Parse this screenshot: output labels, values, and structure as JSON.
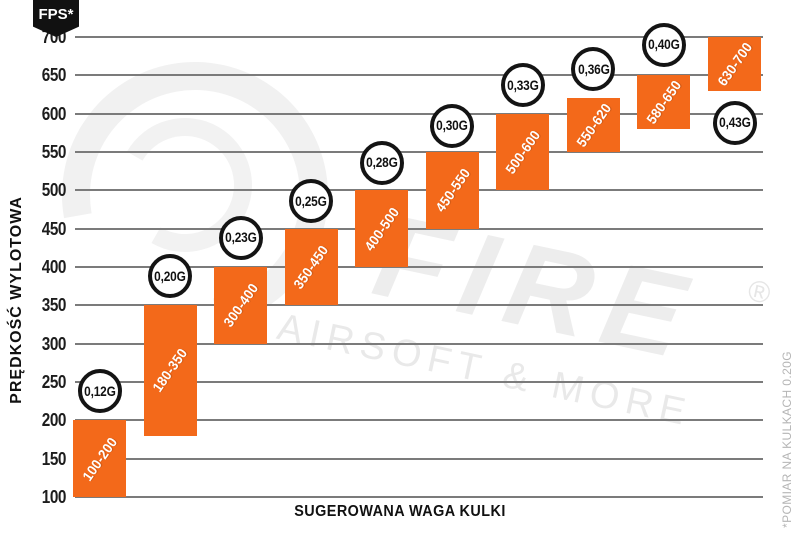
{
  "chart_data": {
    "type": "bar",
    "variant": "floating-range-columns",
    "title": "",
    "xlabel": "SUGEROWANA WAGA KULKI",
    "ylabel": "PRĘDKOŚĆ WYLOTOWA",
    "y_unit_badge": "FPS*",
    "ylim": [
      100,
      700
    ],
    "yticks": [
      700,
      650,
      600,
      550,
      500,
      450,
      400,
      350,
      300,
      250,
      200,
      150,
      100
    ],
    "grid": true,
    "legend": false,
    "footnote": "*POMIAR NA KULKACH 0.20G",
    "items": [
      {
        "weight": "0,12G",
        "range_label": "100-200",
        "fps_min": 100,
        "fps_max": 200,
        "badge_fps": 238
      },
      {
        "weight": "0,20G",
        "range_label": "180-350",
        "fps_min": 180,
        "fps_max": 350,
        "badge_fps": 388
      },
      {
        "weight": "0,23G",
        "range_label": "300-400",
        "fps_min": 300,
        "fps_max": 400,
        "badge_fps": 438
      },
      {
        "weight": "0,25G",
        "range_label": "350-450",
        "fps_min": 350,
        "fps_max": 450,
        "badge_fps": 486
      },
      {
        "weight": "0,28G",
        "range_label": "400-500",
        "fps_min": 400,
        "fps_max": 500,
        "badge_fps": 536
      },
      {
        "weight": "0,30G",
        "range_label": "450-550",
        "fps_min": 450,
        "fps_max": 550,
        "badge_fps": 584
      },
      {
        "weight": "0,33G",
        "range_label": "500-600",
        "fps_min": 500,
        "fps_max": 600,
        "badge_fps": 637
      },
      {
        "weight": "0,36G",
        "range_label": "550-620",
        "fps_min": 550,
        "fps_max": 620,
        "badge_fps": 658
      },
      {
        "weight": "0,40G",
        "range_label": "580-650",
        "fps_min": 580,
        "fps_max": 650,
        "badge_fps": 690
      },
      {
        "weight": "0,43G",
        "range_label": "630-700",
        "fps_min": 630,
        "fps_max": 700,
        "badge_fps": 588
      }
    ],
    "colors": {
      "bar": "#F3691A",
      "grid": "#7b7b7b",
      "badge_background": "#111111",
      "circle_border": "#141414",
      "circle_fill": "#ffffff",
      "bar_label_text": "#ffffff",
      "axis_text": "#111111",
      "footnote_text": "#b5b5b5",
      "watermark": "#ededed"
    }
  },
  "watermark": {
    "logo": "gunfire-g-swirl-logo",
    "brand_text": "FIRE",
    "registered_mark": "®",
    "tagline": "AIRSOFT & MORE"
  }
}
